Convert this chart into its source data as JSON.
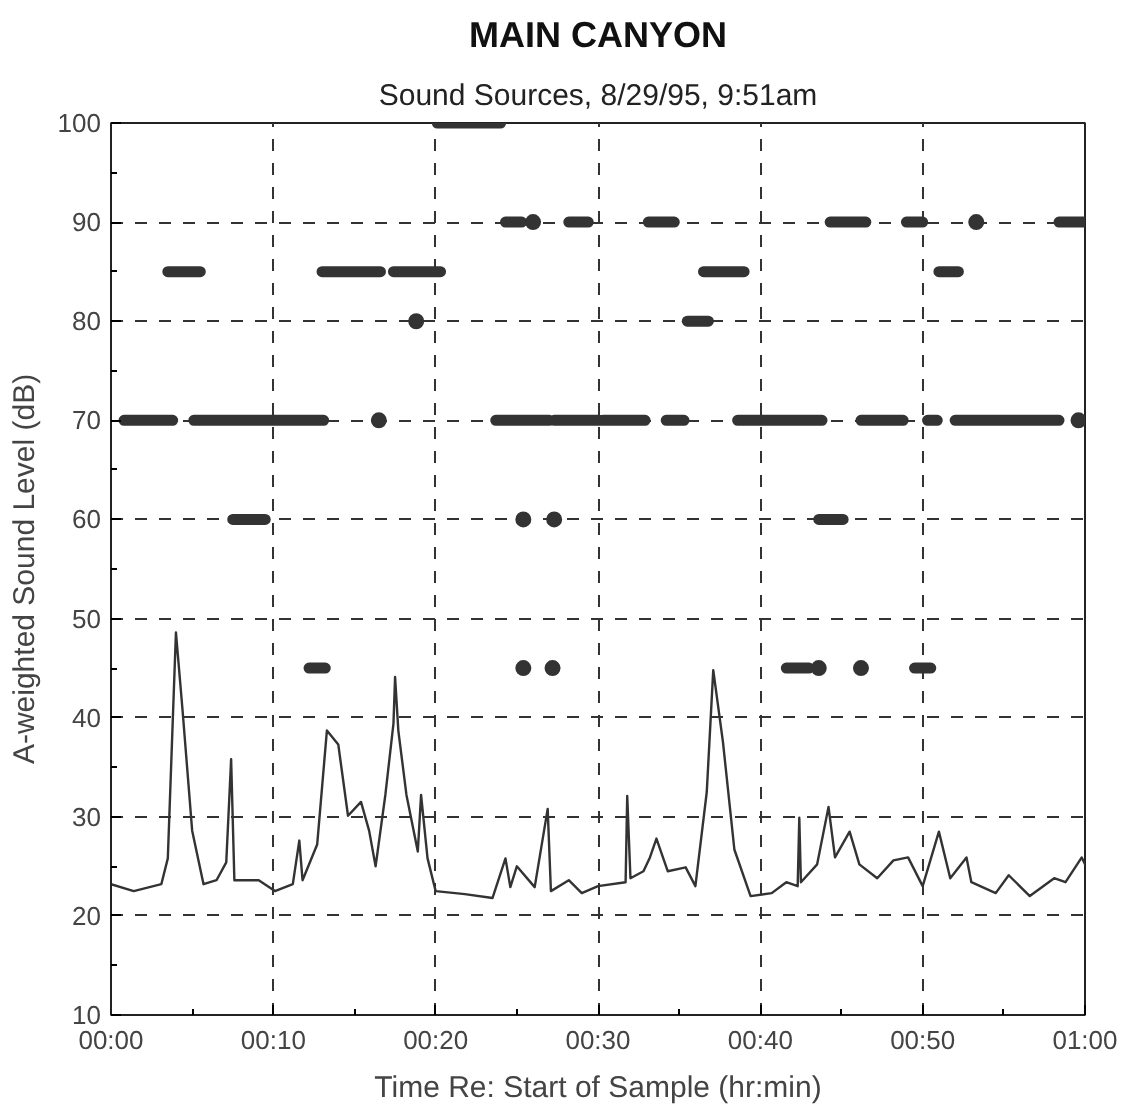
{
  "chart_data": {
    "type": "line",
    "title": "MAIN CANYON",
    "subtitle": "Sound Sources, 8/29/95, 9:51am",
    "xlabel": "Time Re: Start of Sample (hr:min)",
    "ylabel": "A-weighted Sound Level (dB)",
    "xlim": [
      0,
      60
    ],
    "ylim": [
      10,
      100
    ],
    "xticks": [
      {
        "value": 0,
        "label": "00:00"
      },
      {
        "value": 5,
        "label": null
      },
      {
        "value": 10,
        "label": "00:10"
      },
      {
        "value": 15,
        "label": null
      },
      {
        "value": 20,
        "label": "00:20"
      },
      {
        "value": 25,
        "label": null
      },
      {
        "value": 30,
        "label": "00:30"
      },
      {
        "value": 35,
        "label": null
      },
      {
        "value": 40,
        "label": "00:40"
      },
      {
        "value": 45,
        "label": null
      },
      {
        "value": 50,
        "label": "00:50"
      },
      {
        "value": 55,
        "label": null
      },
      {
        "value": 60,
        "label": "01:00"
      }
    ],
    "yticks": [
      10,
      {
        "value": 15,
        "label": null
      },
      20,
      {
        "value": 25,
        "label": null
      },
      30,
      {
        "value": 35,
        "label": null
      },
      40,
      {
        "value": 45,
        "label": null
      },
      50,
      {
        "value": 55,
        "label": null
      },
      60,
      {
        "value": 65,
        "label": null
      },
      70,
      {
        "value": 75,
        "label": null
      },
      80,
      {
        "value": 85,
        "label": null
      },
      90,
      {
        "value": 95,
        "label": null
      },
      100
    ],
    "grid": true,
    "series": [
      {
        "color": "#333333",
        "x": [
          0,
          1.4,
          3.1,
          3.5,
          4.0,
          4.4,
          5.0,
          5.7,
          6.5,
          7.1,
          7.4,
          7.6,
          9.1,
          10.1,
          11.2,
          11.6,
          11.8,
          12.7,
          13.3,
          14.0,
          14.6,
          15.4,
          15.9,
          16.3,
          16.9,
          17.4,
          17.5,
          17.7,
          18.2,
          18.9,
          19.1,
          19.5,
          20.0,
          21.8,
          23.5,
          24.3,
          24.6,
          25.0,
          26.1,
          26.9,
          27.1,
          28.2,
          29.0,
          30.0,
          31.7,
          31.8,
          32.0,
          32.8,
          33.2,
          33.6,
          34.3,
          35.4,
          36.0,
          36.7,
          37.1,
          37.7,
          38.4,
          39.4,
          40.7,
          41.6,
          42.3,
          42.4,
          42.5,
          43.5,
          44.2,
          44.6,
          45.5,
          46.1,
          47.2,
          48.2,
          49.1,
          50.0,
          51.0,
          51.7,
          52.7,
          53.0,
          54.5,
          55.3,
          56.6,
          58.1,
          58.8,
          59.8,
          60.0
        ],
        "values": [
          23.2,
          22.5,
          23.2,
          25.8,
          48.6,
          40.9,
          28.6,
          23.2,
          23.6,
          25.4,
          35.8,
          23.6,
          23.6,
          22.5,
          23.2,
          27.6,
          23.6,
          27.2,
          38.7,
          37.3,
          30.1,
          31.5,
          28.6,
          25.0,
          32.2,
          39.4,
          44.1,
          38.7,
          32.2,
          26.5,
          32.2,
          25.8,
          22.5,
          22.2,
          21.8,
          25.8,
          22.9,
          25.0,
          22.9,
          30.8,
          22.5,
          23.6,
          22.3,
          23.0,
          23.4,
          32.1,
          23.8,
          24.5,
          25.9,
          27.8,
          24.5,
          24.9,
          23.0,
          32.5,
          44.8,
          37.5,
          26.7,
          22.0,
          22.3,
          23.4,
          23.0,
          29.9,
          23.4,
          25.2,
          31.0,
          25.9,
          28.5,
          25.2,
          23.8,
          25.6,
          25.9,
          23.0,
          28.5,
          23.8,
          25.9,
          23.4,
          22.3,
          24.1,
          22.0,
          23.8,
          23.4,
          25.9,
          25.2
        ]
      },
      {
        "color": "#333333",
        "x": [
          20.1,
          24.0
        ],
        "values": [
          100,
          100
        ]
      },
      {
        "color": "#333333",
        "x": [
          24.3,
          25.3,
          null,
          28.2,
          29.4,
          null,
          33.1,
          34.7,
          null,
          44.3,
          46.5,
          null,
          49.0,
          50.0,
          null,
          58.4,
          60.0
        ],
        "values": [
          90,
          90,
          null,
          90,
          90,
          null,
          90,
          90,
          null,
          90,
          90,
          null,
          90,
          90,
          null,
          90,
          90
        ]
      },
      {
        "color": "#333333",
        "x": [
          3.5,
          5.5,
          null,
          13.0,
          16.6,
          null,
          17.4,
          20.3,
          null,
          36.5,
          39.0,
          null,
          51.0,
          52.2
        ],
        "values": [
          85,
          85,
          null,
          85,
          85,
          null,
          85,
          85,
          null,
          85,
          85,
          null,
          85,
          85
        ]
      },
      {
        "color": "#333333",
        "x": [
          35.5,
          36.8
        ],
        "values": [
          80,
          80
        ]
      },
      {
        "color": "#333333",
        "x": [
          0.8,
          3.8,
          null,
          5.1,
          13.1,
          null,
          23.7,
          27.0,
          null,
          27.3,
          30.1,
          null,
          30.3,
          32.9,
          null,
          34.2,
          35.3,
          null,
          38.6,
          43.8,
          null,
          46.2,
          48.8,
          null,
          50.3,
          50.9,
          null,
          52.0,
          58.4
        ],
        "values": [
          70,
          70,
          null,
          70,
          70,
          null,
          70,
          70,
          null,
          70,
          70,
          null,
          70,
          70,
          null,
          70,
          70,
          null,
          70,
          70,
          null,
          70,
          70,
          null,
          70,
          70,
          null,
          70,
          70
        ]
      },
      {
        "color": "#333333",
        "x": [
          7.5,
          9.5,
          null,
          43.6,
          45.1
        ],
        "values": [
          60,
          60,
          null,
          60,
          60
        ]
      },
      {
        "color": "#333333",
        "x": [
          12.2,
          13.2,
          null,
          41.6,
          43.0,
          null,
          49.5,
          50.5
        ],
        "values": [
          45,
          45,
          null,
          45,
          45,
          null,
          45,
          45
        ]
      },
      {
        "type": "scatter",
        "marker": "circle",
        "color": "#333333",
        "x": [
          26.0,
          53.3,
          18.8,
          16.5,
          59.6,
          25.4,
          27.3,
          25.4,
          27.2,
          43.6,
          46.2
        ],
        "values": [
          90,
          90,
          80,
          70,
          70,
          60,
          60,
          45,
          45,
          45,
          45
        ]
      }
    ]
  }
}
